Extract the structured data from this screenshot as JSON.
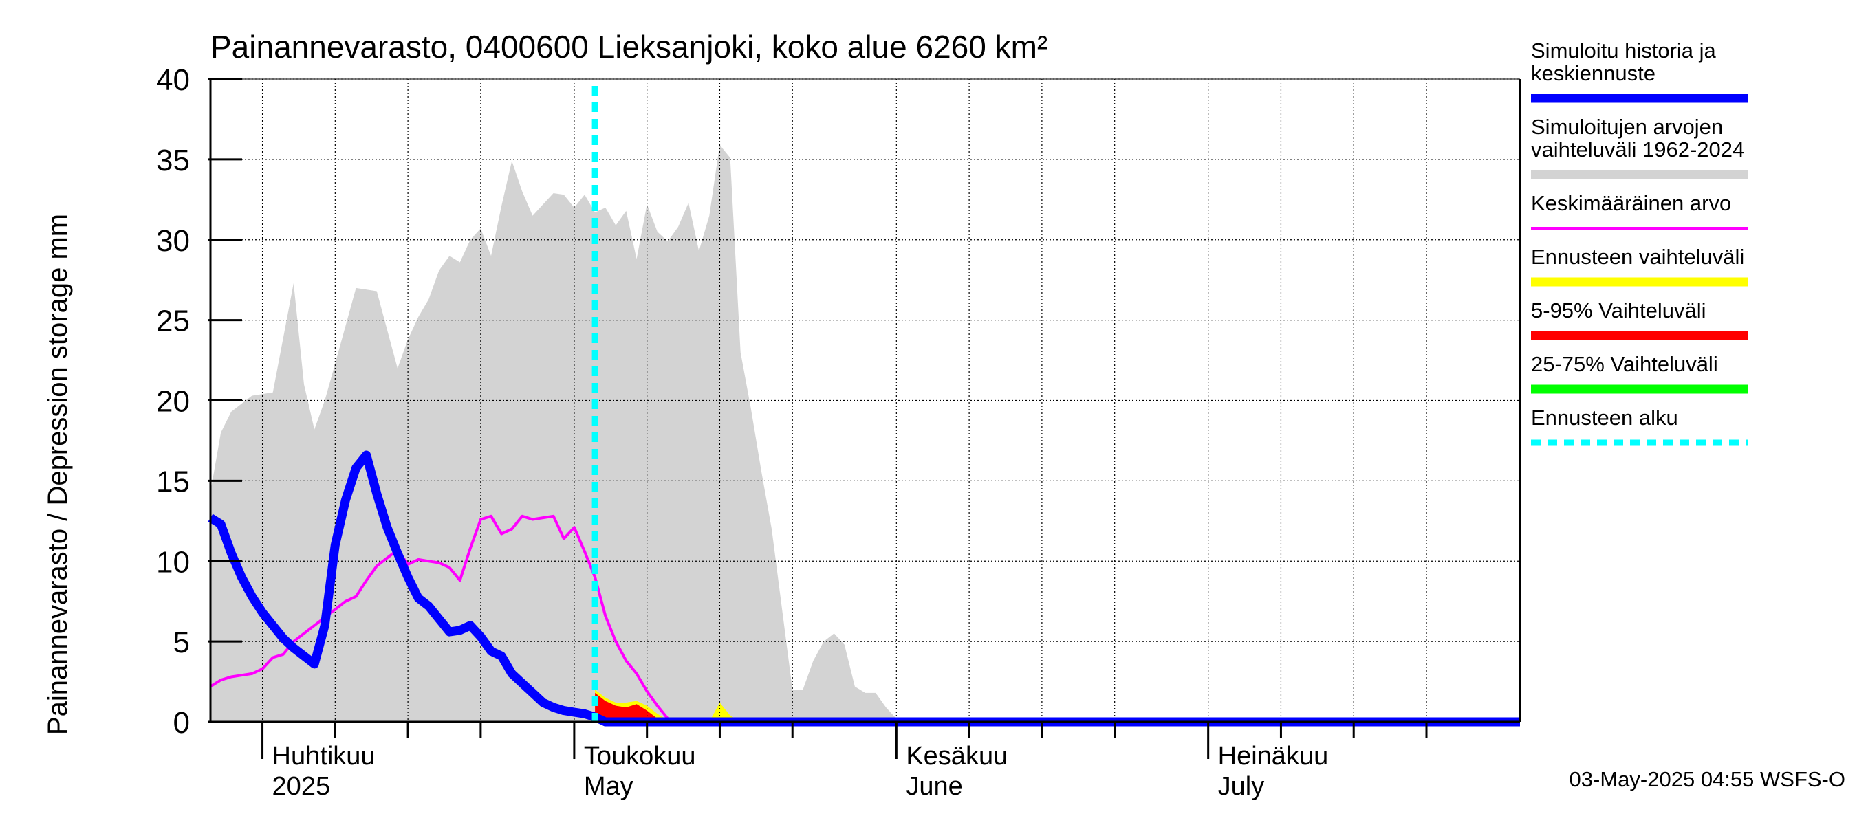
{
  "chart_data": {
    "type": "area",
    "title": "Painannevarasto, 0400600 Lieksanjoki, koko alue 6260 km²",
    "ylabel": "Painannevarasto / Depression storage    mm",
    "ylim": [
      0,
      40
    ],
    "yticks": [
      "0",
      "5",
      "10",
      "15",
      "20",
      "25",
      "30",
      "35",
      "40"
    ],
    "xlim": [
      "2025-03-27",
      "2025-07-31"
    ],
    "grid": true,
    "month_labels": [
      {
        "fi": "Huhtikuu",
        "en": "2025",
        "date": "2025-04-01"
      },
      {
        "fi": "Toukokuu",
        "en": "May",
        "date": "2025-05-01"
      },
      {
        "fi": "Kesäkuu",
        "en": "June",
        "date": "2025-06-01"
      },
      {
        "fi": "Heinäkuu",
        "en": "July",
        "date": "2025-07-01"
      }
    ],
    "forecast_start": "2025-05-03",
    "footer": "03-May-2025 04:55 WSFS-O",
    "legend_position": "right",
    "legend": [
      {
        "label": "Simuloitu historia ja keskiennuste",
        "color": "#0000ff",
        "style": "thick"
      },
      {
        "label": "Simuloitujen arvojen vaihteluväli 1962-2024",
        "color": "#d3d3d3",
        "style": "band"
      },
      {
        "label": "Keskimääräinen arvo",
        "color": "#ff00ff",
        "style": "thin"
      },
      {
        "label": "Ennusteen vaihteluväli",
        "color": "#ffff00",
        "style": "band"
      },
      {
        "label": "5-95% Vaihteluväli",
        "color": "#ff0000",
        "style": "band"
      },
      {
        "label": "25-75% Vaihteluväli",
        "color": "#00ff00",
        "style": "band"
      },
      {
        "label": "Ennusteen alku",
        "color": "#00ffff",
        "style": "dashed"
      }
    ],
    "series": [
      {
        "name": "Simuloitujen arvojen vaihteluväli 1962-2024",
        "kind": "range",
        "color": "#d3d3d3",
        "x": [
          "2025-03-27",
          "2025-03-28",
          "2025-03-29",
          "2025-03-31",
          "2025-04-02",
          "2025-04-04",
          "2025-04-05",
          "2025-04-06",
          "2025-04-07",
          "2025-04-08",
          "2025-04-10",
          "2025-04-12",
          "2025-04-13",
          "2025-04-14",
          "2025-04-15",
          "2025-04-16",
          "2025-04-17",
          "2025-04-18",
          "2025-04-19",
          "2025-04-20",
          "2025-04-21",
          "2025-04-22",
          "2025-04-23",
          "2025-04-24",
          "2025-04-25",
          "2025-04-26",
          "2025-04-27",
          "2025-04-28",
          "2025-04-29",
          "2025-04-30",
          "2025-05-01",
          "2025-05-02",
          "2025-05-03",
          "2025-05-04",
          "2025-05-05",
          "2025-05-06",
          "2025-05-07",
          "2025-05-08",
          "2025-05-09",
          "2025-05-10",
          "2025-05-11",
          "2025-05-12",
          "2025-05-13",
          "2025-05-14",
          "2025-05-15",
          "2025-05-16",
          "2025-05-17",
          "2025-05-18",
          "2025-05-19",
          "2025-05-20",
          "2025-05-22",
          "2025-05-23",
          "2025-05-24",
          "2025-05-25",
          "2025-05-26",
          "2025-05-27",
          "2025-05-28",
          "2025-05-29",
          "2025-05-30",
          "2025-05-31",
          "2025-06-01",
          "2025-06-02",
          "2025-06-03",
          "2025-07-31"
        ],
        "upper": [
          14.3,
          18.0,
          19.3,
          20.3,
          20.5,
          27.3,
          21.0,
          18.2,
          20.0,
          22.3,
          27.0,
          26.8,
          24.4,
          22.0,
          23.8,
          25.2,
          26.3,
          28.1,
          29.0,
          28.6,
          30.0,
          30.7,
          29.0,
          32.1,
          34.9,
          33.0,
          31.5,
          32.2,
          32.9,
          32.8,
          32.0,
          32.8,
          31.7,
          32.0,
          30.9,
          31.8,
          28.8,
          32.2,
          30.5,
          29.9,
          30.8,
          32.3,
          29.3,
          31.5,
          35.9,
          35.1,
          23.0,
          19.5,
          15.6,
          12.0,
          2.0,
          2.0,
          3.8,
          5.0,
          5.5,
          4.8,
          2.2,
          1.8,
          1.8,
          0.9,
          0.2,
          0.0,
          0.0,
          0.0
        ],
        "lower": [
          0,
          0,
          0,
          0,
          0,
          0,
          0,
          0,
          0,
          0,
          0,
          0,
          0,
          0,
          0,
          0,
          0,
          0,
          0,
          0,
          0,
          0,
          0,
          0,
          0,
          0,
          0,
          0,
          0,
          0,
          0,
          0,
          0,
          0,
          0,
          0,
          0,
          0,
          0,
          0,
          0,
          0,
          0,
          0,
          0,
          0,
          0,
          0,
          0,
          0,
          0,
          0,
          0,
          0,
          0,
          0,
          0,
          0,
          0,
          0,
          0,
          0,
          0,
          0
        ]
      },
      {
        "name": "Ennusteen vaihteluväli",
        "kind": "range",
        "color": "#ffff00",
        "x": [
          "2025-05-03",
          "2025-05-04",
          "2025-05-05",
          "2025-05-06",
          "2025-05-07",
          "2025-05-08",
          "2025-05-09",
          "2025-05-10",
          "2025-05-11",
          "2025-05-14",
          "2025-05-15",
          "2025-05-16",
          "2025-05-17"
        ],
        "upper": [
          2.0,
          1.5,
          1.2,
          1.2,
          1.3,
          1.0,
          0.5,
          0.1,
          0.0,
          0.0,
          1.2,
          0.4,
          0.0
        ],
        "lower": [
          0,
          0,
          0,
          0,
          0,
          0,
          0,
          0,
          0,
          0,
          0,
          0,
          0
        ]
      },
      {
        "name": "5-95% Vaihteluväli",
        "kind": "range",
        "color": "#ff0000",
        "x": [
          "2025-05-03",
          "2025-05-04",
          "2025-05-05",
          "2025-05-06",
          "2025-05-07",
          "2025-05-08",
          "2025-05-09",
          "2025-05-10"
        ],
        "upper": [
          1.8,
          1.3,
          1.0,
          0.9,
          1.1,
          0.7,
          0.2,
          0.0
        ],
        "lower": [
          0,
          0,
          0,
          0,
          0,
          0,
          0,
          0
        ]
      },
      {
        "name": "Keskimääräinen arvo",
        "kind": "line",
        "color": "#ff00ff",
        "x": [
          "2025-03-27",
          "2025-03-28",
          "2025-03-29",
          "2025-03-30",
          "2025-03-31",
          "2025-04-01",
          "2025-04-02",
          "2025-04-03",
          "2025-04-04",
          "2025-04-05",
          "2025-04-06",
          "2025-04-07",
          "2025-04-08",
          "2025-04-09",
          "2025-04-10",
          "2025-04-11",
          "2025-04-12",
          "2025-04-13",
          "2025-04-14",
          "2025-04-15",
          "2025-04-16",
          "2025-04-17",
          "2025-04-18",
          "2025-04-19",
          "2025-04-20",
          "2025-04-21",
          "2025-04-22",
          "2025-04-23",
          "2025-04-24",
          "2025-04-25",
          "2025-04-26",
          "2025-04-27",
          "2025-04-28",
          "2025-04-29",
          "2025-04-30",
          "2025-05-01",
          "2025-05-02",
          "2025-05-03",
          "2025-05-04",
          "2025-05-05",
          "2025-05-06",
          "2025-05-07",
          "2025-05-08",
          "2025-05-09",
          "2025-05-10",
          "2025-05-11",
          "2025-05-12",
          "2025-05-13",
          "2025-05-14",
          "2025-05-15",
          "2025-05-16",
          "2025-07-31"
        ],
        "values": [
          2.2,
          2.6,
          2.8,
          2.9,
          3.0,
          3.3,
          4.0,
          4.2,
          5.0,
          5.5,
          6.0,
          6.5,
          7.0,
          7.5,
          7.8,
          8.8,
          9.7,
          10.2,
          10.7,
          9.8,
          10.1,
          10.0,
          9.9,
          9.6,
          8.8,
          10.8,
          12.6,
          12.8,
          11.7,
          12.0,
          12.8,
          12.6,
          12.7,
          12.8,
          11.4,
          12.1,
          10.6,
          9.0,
          6.6,
          5.0,
          3.8,
          3.0,
          1.9,
          1.0,
          0.2,
          0.0,
          0.0,
          0.0,
          0.0,
          0.0,
          0.0,
          0.0
        ]
      },
      {
        "name": "Simuloitu historia ja keskiennuste",
        "kind": "line",
        "color": "#0000ff",
        "x": [
          "2025-03-27",
          "2025-03-28",
          "2025-03-29",
          "2025-03-30",
          "2025-03-31",
          "2025-04-01",
          "2025-04-02",
          "2025-04-03",
          "2025-04-04",
          "2025-04-05",
          "2025-04-06",
          "2025-04-07",
          "2025-04-08",
          "2025-04-09",
          "2025-04-10",
          "2025-04-11",
          "2025-04-12",
          "2025-04-13",
          "2025-04-14",
          "2025-04-15",
          "2025-04-16",
          "2025-04-17",
          "2025-04-18",
          "2025-04-19",
          "2025-04-20",
          "2025-04-21",
          "2025-04-22",
          "2025-04-23",
          "2025-04-24",
          "2025-04-25",
          "2025-04-26",
          "2025-04-27",
          "2025-04-28",
          "2025-04-29",
          "2025-04-30",
          "2025-05-01",
          "2025-05-02",
          "2025-05-03",
          "2025-05-04",
          "2025-05-05",
          "2025-05-06",
          "2025-05-07",
          "2025-05-08",
          "2025-05-09",
          "2025-05-10",
          "2025-05-11",
          "2025-05-12",
          "2025-05-13",
          "2025-05-14",
          "2025-05-15",
          "2025-07-31"
        ],
        "values": [
          12.7,
          12.3,
          10.5,
          9.0,
          7.8,
          6.8,
          6.0,
          5.2,
          4.6,
          4.1,
          3.6,
          6.0,
          11.0,
          13.8,
          15.8,
          16.6,
          14.2,
          12.1,
          10.5,
          9.0,
          7.7,
          7.2,
          6.4,
          5.6,
          5.7,
          6.0,
          5.3,
          4.4,
          4.1,
          3.0,
          2.4,
          1.8,
          1.2,
          0.9,
          0.7,
          0.6,
          0.5,
          0.3,
          0.0,
          0.0,
          0.0,
          0.0,
          0.0,
          0.0,
          0.0,
          0.0,
          0.0,
          0.0,
          0.0,
          0.0,
          0.0
        ]
      }
    ]
  }
}
